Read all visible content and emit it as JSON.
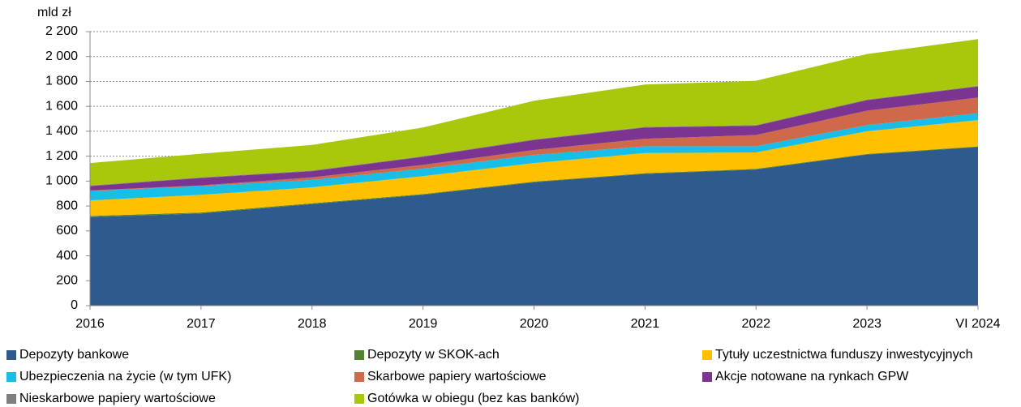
{
  "chart_data": {
    "type": "stacked-area",
    "y_label": "mld zł",
    "categories": [
      "2016",
      "2017",
      "2018",
      "2019",
      "2020",
      "2021",
      "2022",
      "2023",
      "VI 2024"
    ],
    "ylim": [
      0,
      2200
    ],
    "yticks": [
      0,
      200,
      400,
      600,
      800,
      {
        "value": 1000,
        "label": "1 000"
      },
      {
        "value": 1200,
        "label": "1 200"
      },
      {
        "value": 1400,
        "label": "1 400"
      },
      {
        "value": 1600,
        "label": "1 600"
      },
      {
        "value": 1800,
        "label": "1 800"
      },
      {
        "value": 2000,
        "label": "2 000"
      },
      {
        "value": 2200,
        "label": "2 200"
      }
    ],
    "grid": true,
    "series": [
      {
        "name": "Depozyty bankowe",
        "color": "#2f5a8c",
        "values": [
          710,
          740,
          815,
          890,
          990,
          1058,
          1093,
          1213,
          1273
        ]
      },
      {
        "name": "Depozyty w SKOK-ach",
        "color": "#548235",
        "values": [
          10,
          8,
          7,
          6,
          6,
          5,
          5,
          5,
          5
        ]
      },
      {
        "name": "Tytuły uczestnictwa funduszy inwestycyjnych",
        "color": "#ffc000",
        "values": [
          125,
          142,
          128,
          144,
          149,
          162,
          132,
          182,
          212
        ]
      },
      {
        "name": "Ubezpieczenia na życie (w tym UFK)",
        "color": "#17bfe8",
        "values": [
          75,
          70,
          60,
          60,
          65,
          55,
          50,
          50,
          55
        ]
      },
      {
        "name": "Skarbowe papiery wartościowe",
        "color": "#d0684a",
        "values": [
          5,
          5,
          20,
          30,
          40,
          60,
          90,
          115,
          125
        ]
      },
      {
        "name": "Akcje notowane na rynkach GPW",
        "color": "#7b3590",
        "values": [
          35,
          60,
          50,
          65,
          80,
          90,
          75,
          85,
          90
        ]
      },
      {
        "name": "Nieskarbowe papiery wartościowe",
        "color": "#7f7f7f",
        "values": [
          5,
          5,
          5,
          5,
          5,
          5,
          5,
          5,
          5
        ]
      },
      {
        "name": "Gotówka w obiegu (bez kas banków)",
        "color": "#a9c80b",
        "values": [
          180,
          190,
          205,
          230,
          310,
          340,
          355,
          365,
          375
        ]
      }
    ]
  }
}
